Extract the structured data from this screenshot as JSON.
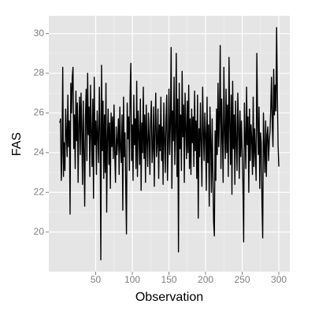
{
  "chart_data": {
    "type": "line",
    "xlabel": "Observation",
    "ylabel": "FAS",
    "color": "#000000",
    "grid": true,
    "xlim": [
      -14,
      315
    ],
    "ylim": [
      18.0,
      30.9
    ],
    "xticks": [
      50,
      100,
      150,
      200,
      250,
      300
    ],
    "yticks": [
      20,
      22,
      24,
      26,
      28,
      30
    ],
    "x": [
      1,
      2,
      3,
      4,
      5,
      6,
      7,
      8,
      9,
      10,
      11,
      12,
      13,
      14,
      15,
      16,
      17,
      18,
      19,
      20,
      21,
      22,
      23,
      24,
      25,
      26,
      27,
      28,
      29,
      30,
      31,
      32,
      33,
      34,
      35,
      36,
      37,
      38,
      39,
      40,
      41,
      42,
      43,
      44,
      45,
      46,
      47,
      48,
      49,
      50,
      51,
      52,
      53,
      54,
      55,
      56,
      57,
      58,
      59,
      60,
      61,
      62,
      63,
      64,
      65,
      66,
      67,
      68,
      69,
      70,
      71,
      72,
      73,
      74,
      75,
      76,
      77,
      78,
      79,
      80,
      81,
      82,
      83,
      84,
      85,
      86,
      87,
      88,
      89,
      90,
      91,
      92,
      93,
      94,
      95,
      96,
      97,
      98,
      99,
      100,
      101,
      102,
      103,
      104,
      105,
      106,
      107,
      108,
      109,
      110,
      111,
      112,
      113,
      114,
      115,
      116,
      117,
      118,
      119,
      120,
      121,
      122,
      123,
      124,
      125,
      126,
      127,
      128,
      129,
      130,
      131,
      132,
      133,
      134,
      135,
      136,
      137,
      138,
      139,
      140,
      141,
      142,
      143,
      144,
      145,
      146,
      147,
      148,
      149,
      150,
      151,
      152,
      153,
      154,
      155,
      156,
      157,
      158,
      159,
      160,
      161,
      162,
      163,
      164,
      165,
      166,
      167,
      168,
      169,
      170,
      171,
      172,
      173,
      174,
      175,
      176,
      177,
      178,
      179,
      180,
      181,
      182,
      183,
      184,
      185,
      186,
      187,
      188,
      189,
      190,
      191,
      192,
      193,
      194,
      195,
      196,
      197,
      198,
      199,
      200,
      201,
      202,
      203,
      204,
      205,
      206,
      207,
      208,
      209,
      210,
      211,
      212,
      213,
      214,
      215,
      216,
      217,
      218,
      219,
      220,
      221,
      222,
      223,
      224,
      225,
      226,
      227,
      228,
      229,
      230,
      231,
      232,
      233,
      234,
      235,
      236,
      237,
      238,
      239,
      240,
      241,
      242,
      243,
      244,
      245,
      246,
      247,
      248,
      249,
      250,
      251,
      252,
      253,
      254,
      255,
      256,
      257,
      258,
      259,
      260,
      261,
      262,
      263,
      264,
      265,
      266,
      267,
      268,
      269,
      270,
      271,
      272,
      273,
      274,
      275,
      276,
      277,
      278,
      279,
      280,
      281,
      282,
      283,
      284,
      285,
      286,
      287,
      288,
      289,
      290,
      291,
      292,
      293,
      294,
      295,
      296,
      297,
      298,
      299,
      300
    ],
    "values": [
      25.5,
      25.7,
      22.6,
      24.0,
      28.3,
      22.8,
      24.5,
      23.1,
      26.2,
      25.0,
      23.8,
      26.9,
      24.3,
      25.6,
      20.9,
      27.5,
      26.0,
      27.8,
      28.3,
      24.2,
      25.9,
      23.2,
      27.1,
      24.6,
      26.5,
      22.5,
      25.4,
      26.8,
      23.9,
      27.0,
      25.1,
      22.4,
      26.6,
      24.0,
      21.3,
      25.8,
      27.2,
      23.6,
      28.0,
      24.9,
      26.3,
      22.8,
      27.4,
      25.0,
      23.3,
      26.7,
      21.7,
      27.8,
      24.4,
      25.6,
      22.9,
      26.1,
      24.8,
      23.5,
      27.3,
      25.2,
      18.6,
      28.4,
      24.1,
      26.6,
      22.7,
      25.9,
      23.0,
      27.5,
      21.0,
      24.7,
      26.2,
      23.4,
      25.5,
      22.2,
      26.0,
      24.3,
      25.8,
      23.7,
      26.4,
      24.0,
      22.5,
      25.3,
      23.9,
      24.6,
      25.7,
      22.9,
      26.3,
      24.2,
      23.5,
      25.9,
      21.1,
      26.8,
      23.8,
      25.0,
      22.4,
      19.9,
      26.5,
      24.7,
      25.8,
      23.1,
      27.0,
      28.5,
      23.6,
      25.4,
      22.6,
      26.9,
      24.4,
      25.7,
      23.2,
      27.6,
      22.8,
      26.1,
      24.9,
      23.4,
      26.7,
      22.1,
      25.5,
      24.0,
      27.3,
      23.7,
      25.9,
      22.5,
      26.4,
      24.6,
      23.3,
      26.0,
      24.8,
      22.9,
      25.6,
      26.6,
      23.5,
      24.2,
      26.3,
      22.3,
      25.1,
      27.0,
      23.8,
      24.5,
      26.2,
      22.7,
      25.4,
      24.1,
      26.8,
      23.6,
      25.3,
      22.4,
      26.5,
      24.7,
      23.0,
      25.8,
      26.9,
      22.6,
      24.3,
      27.2,
      23.9,
      25.5,
      29.3,
      22.2,
      26.1,
      24.6,
      27.8,
      23.4,
      25.0,
      29.0,
      22.8,
      26.7,
      19.0,
      27.5,
      24.2,
      25.9,
      23.1,
      28.1,
      24.8,
      26.4,
      22.5,
      27.0,
      25.3,
      23.7,
      26.6,
      24.0,
      27.4,
      23.2,
      25.7,
      22.9,
      26.2,
      24.5,
      25.8,
      23.3,
      27.1,
      24.1,
      25.6,
      22.7,
      26.9,
      20.7,
      25.2,
      23.8,
      26.5,
      24.4,
      22.3,
      27.3,
      25.0,
      23.6,
      26.0,
      24.9,
      22.1,
      26.8,
      23.5,
      25.4,
      21.3,
      26.3,
      24.6,
      22.0,
      25.7,
      23.0,
      20.5,
      19.8,
      25.1,
      22.6,
      26.2,
      23.9,
      27.5,
      24.3,
      25.8,
      29.4,
      23.2,
      26.7,
      24.8,
      22.5,
      28.3,
      25.1,
      23.7,
      27.2,
      24.0,
      26.4,
      22.8,
      28.8,
      25.5,
      23.4,
      26.9,
      21.9,
      27.6,
      24.2,
      25.9,
      22.4,
      26.6,
      24.5,
      23.1,
      27.0,
      25.3,
      22.7,
      26.1,
      23.8,
      25.6,
      24.1,
      22.3,
      19.5,
      26.5,
      24.8,
      23.2,
      27.3,
      24.4,
      25.8,
      22.0,
      26.2,
      23.6,
      25.4,
      24.7,
      22.9,
      26.8,
      23.3,
      25.2,
      24.0,
      22.6,
      29.0,
      25.7,
      23.9,
      26.3,
      22.2,
      25.0,
      24.5,
      21.5,
      19.7,
      26.0,
      24.3,
      23.0,
      25.6,
      22.8,
      24.9,
      25.3,
      23.6,
      24.6,
      25.1,
      26.2,
      27.8,
      25.5,
      24.3,
      28.2,
      25.9,
      27.4,
      26.1,
      30.3,
      27.0,
      24.4,
      23.3
    ]
  }
}
